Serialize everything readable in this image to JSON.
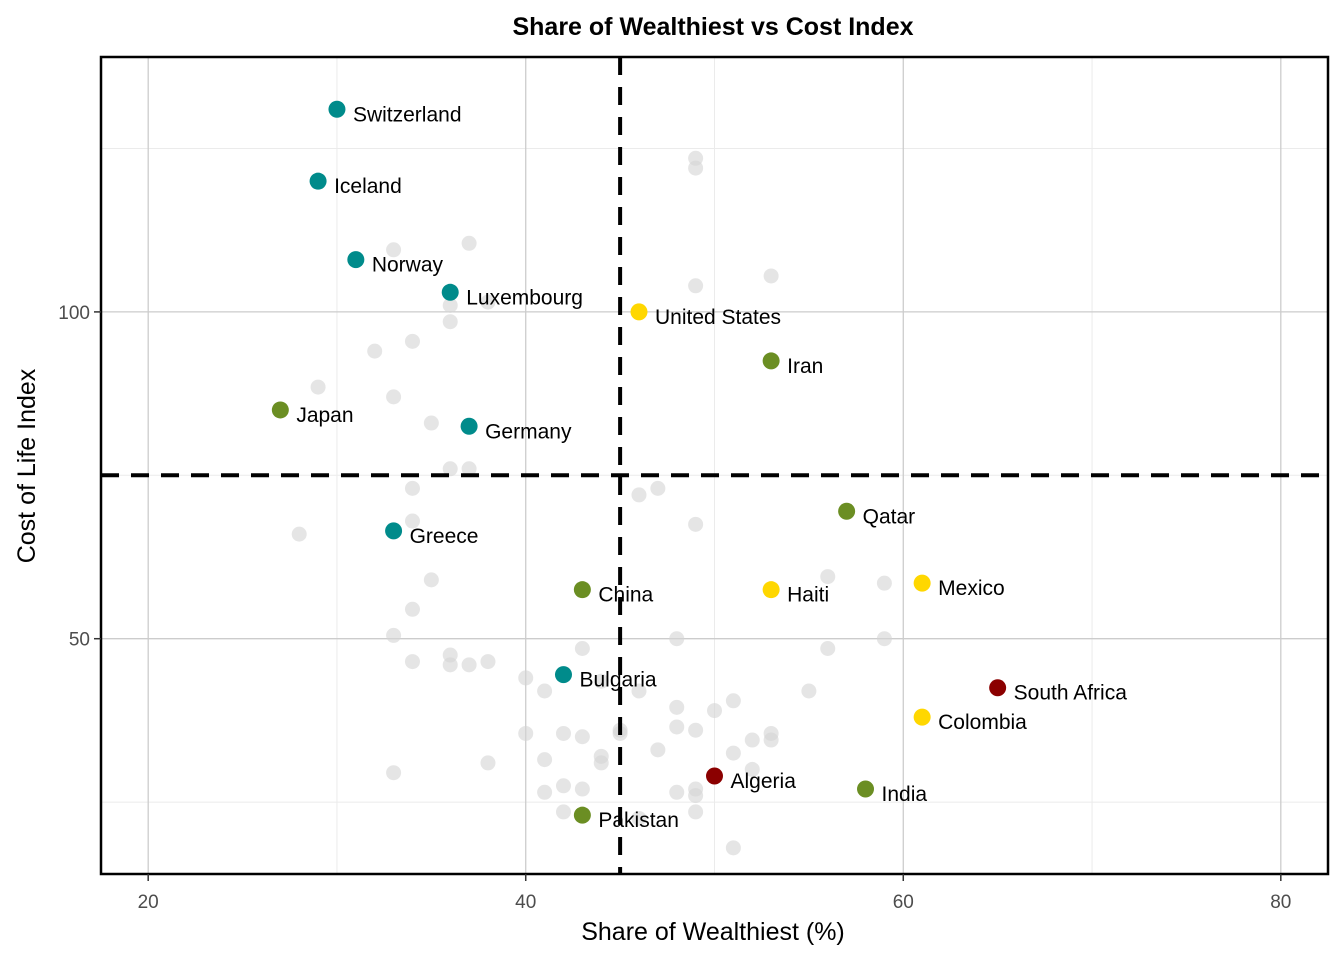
{
  "chart_data": {
    "type": "scatter",
    "title": "Share of Wealthiest vs Cost Index",
    "xlabel": "Share of Wealthiest (%)",
    "ylabel": "Cost of Life Index",
    "xlim": [
      17.5,
      82.5
    ],
    "ylim": [
      14,
      139
    ],
    "x_ticks": [
      20,
      40,
      60,
      80
    ],
    "y_ticks": [
      50,
      100
    ],
    "x_minor_grid": [
      30,
      50,
      70
    ],
    "y_minor_grid": [
      25,
      75,
      125
    ],
    "grid": true,
    "reference_lines": {
      "vertical_x": 45,
      "horizontal_y": 75
    },
    "colors": {
      "teal": "#008B8B",
      "olive": "#6B8E23",
      "gold": "#FFD700",
      "darkred": "#8B0000",
      "background_points": "#d3d3d3"
    },
    "highlighted": [
      {
        "label": "Switzerland",
        "x": 30,
        "y": 131,
        "color": "#008B8B"
      },
      {
        "label": "Iceland",
        "x": 29,
        "y": 120,
        "color": "#008B8B"
      },
      {
        "label": "Norway",
        "x": 31,
        "y": 108,
        "color": "#008B8B"
      },
      {
        "label": "Luxembourg",
        "x": 36,
        "y": 103,
        "color": "#008B8B"
      },
      {
        "label": "United States",
        "x": 46,
        "y": 100,
        "color": "#FFD700"
      },
      {
        "label": "Iran",
        "x": 53,
        "y": 92.5,
        "color": "#6B8E23"
      },
      {
        "label": "Japan",
        "x": 27,
        "y": 85,
        "color": "#6B8E23"
      },
      {
        "label": "Germany",
        "x": 37,
        "y": 82.5,
        "color": "#008B8B"
      },
      {
        "label": "Qatar",
        "x": 57,
        "y": 69.5,
        "color": "#6B8E23"
      },
      {
        "label": "Greece",
        "x": 33,
        "y": 66.5,
        "color": "#008B8B"
      },
      {
        "label": "Mexico",
        "x": 61,
        "y": 58.5,
        "color": "#FFD700"
      },
      {
        "label": "China",
        "x": 43,
        "y": 57.5,
        "color": "#6B8E23"
      },
      {
        "label": "Haiti",
        "x": 53,
        "y": 57.5,
        "color": "#FFD700"
      },
      {
        "label": "Bulgaria",
        "x": 42,
        "y": 44.5,
        "color": "#008B8B"
      },
      {
        "label": "South Africa",
        "x": 65,
        "y": 42.5,
        "color": "#8B0000"
      },
      {
        "label": "Colombia",
        "x": 61,
        "y": 38,
        "color": "#FFD700"
      },
      {
        "label": "Algeria",
        "x": 50,
        "y": 29,
        "color": "#8B0000"
      },
      {
        "label": "India",
        "x": 58,
        "y": 27,
        "color": "#6B8E23"
      },
      {
        "label": "Pakistan",
        "x": 43,
        "y": 23,
        "color": "#6B8E23"
      }
    ],
    "background_points": [
      [
        49,
        123.5
      ],
      [
        49,
        122
      ],
      [
        53,
        105.5
      ],
      [
        49,
        104
      ],
      [
        37,
        110.5
      ],
      [
        33,
        109.5
      ],
      [
        36,
        101
      ],
      [
        38,
        101.5
      ],
      [
        36,
        98.5
      ],
      [
        34,
        95.5
      ],
      [
        32,
        94
      ],
      [
        29,
        88.5
      ],
      [
        33,
        87
      ],
      [
        35,
        83
      ],
      [
        36,
        76
      ],
      [
        37,
        76
      ],
      [
        34,
        73
      ],
      [
        47,
        73
      ],
      [
        46,
        72
      ],
      [
        34,
        68
      ],
      [
        49,
        67.5
      ],
      [
        28,
        66
      ],
      [
        56,
        59.5
      ],
      [
        35,
        59
      ],
      [
        59,
        58.5
      ],
      [
        34,
        54.5
      ],
      [
        33,
        50.5
      ],
      [
        48,
        50
      ],
      [
        59,
        50
      ],
      [
        43,
        48.5
      ],
      [
        56,
        48.5
      ],
      [
        36,
        47.5
      ],
      [
        34,
        46.5
      ],
      [
        36,
        46
      ],
      [
        37,
        46
      ],
      [
        38,
        46.5
      ],
      [
        40,
        44
      ],
      [
        44,
        43.5
      ],
      [
        41,
        42
      ],
      [
        46,
        42
      ],
      [
        55,
        42
      ],
      [
        51,
        40.5
      ],
      [
        48,
        39.5
      ],
      [
        50,
        39
      ],
      [
        48,
        36.5
      ],
      [
        49,
        36
      ],
      [
        45,
        36
      ],
      [
        45,
        35.5
      ],
      [
        40,
        35.5
      ],
      [
        42,
        35.5
      ],
      [
        43,
        35
      ],
      [
        53,
        35.5
      ],
      [
        52,
        34.5
      ],
      [
        53,
        34.5
      ],
      [
        47,
        33
      ],
      [
        51,
        32.5
      ],
      [
        41,
        31.5
      ],
      [
        44,
        32
      ],
      [
        44,
        31
      ],
      [
        52,
        30
      ],
      [
        38,
        31
      ],
      [
        33,
        29.5
      ],
      [
        42,
        27.5
      ],
      [
        43,
        27
      ],
      [
        49,
        27
      ],
      [
        41,
        26.5
      ],
      [
        48,
        26.5
      ],
      [
        49,
        26
      ],
      [
        49,
        23.5
      ],
      [
        42,
        23.5
      ],
      [
        46,
        22.5
      ],
      [
        51,
        18
      ]
    ]
  }
}
